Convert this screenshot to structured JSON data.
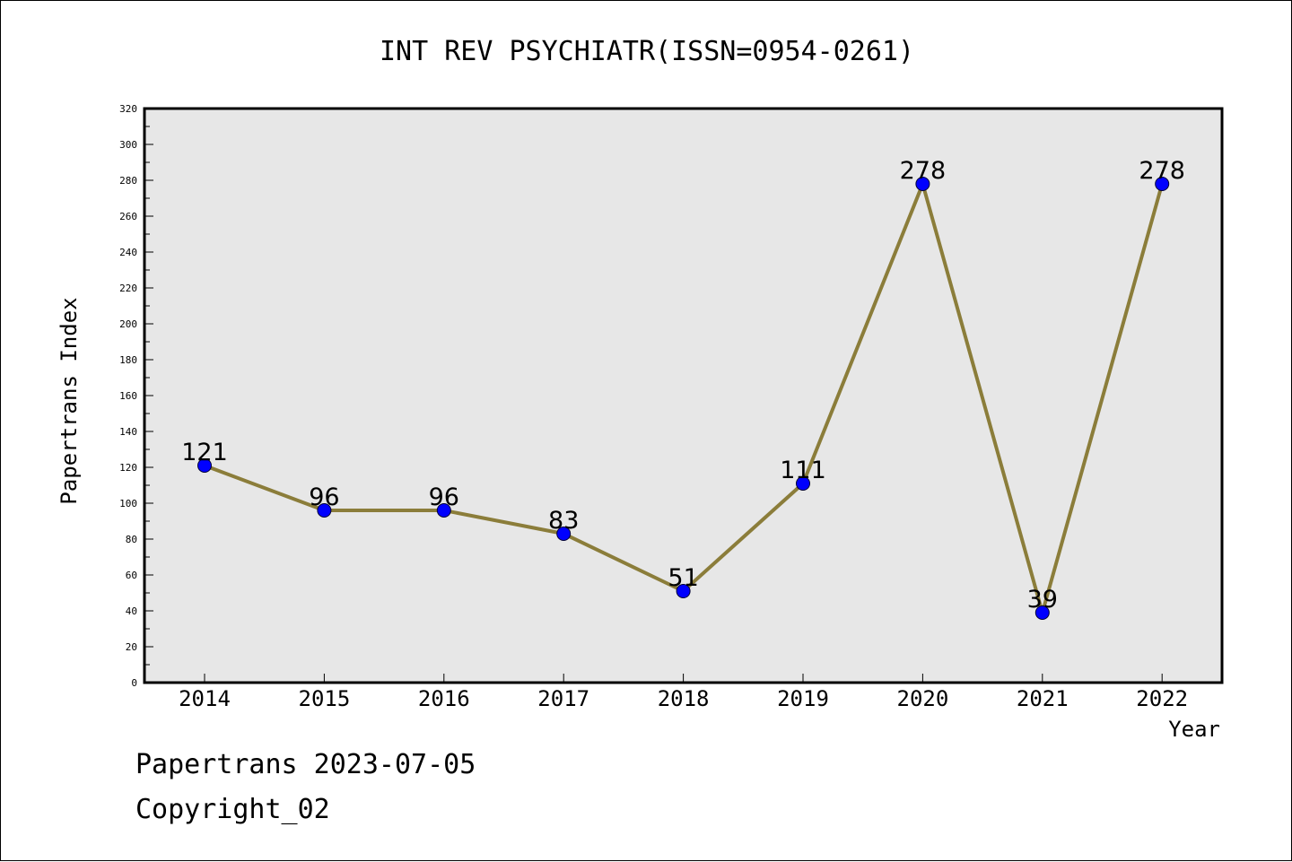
{
  "chart_data": {
    "type": "line",
    "title": "INT REV PSYCHIATR(ISSN=0954-0261)",
    "xlabel": "Year",
    "ylabel": "Papertrans Index",
    "categories": [
      "2014",
      "2015",
      "2016",
      "2017",
      "2018",
      "2019",
      "2020",
      "2021",
      "2022"
    ],
    "series": [
      {
        "values": [
          121,
          96,
          96,
          83,
          51,
          111,
          278,
          39,
          278
        ]
      }
    ],
    "data_labels": [
      "121",
      "96",
      "96",
      "83",
      "51",
      "111",
      "278",
      "39",
      "278"
    ],
    "ylim": [
      0,
      320
    ],
    "y_ticks": [
      "0",
      "20",
      "40",
      "60",
      "80",
      "100",
      "120",
      "140",
      "160",
      "180",
      "200",
      "220",
      "240",
      "260",
      "280",
      "300",
      "320"
    ],
    "grid": false,
    "legend": "none",
    "colors": {
      "plot_background": "#e7e7e7",
      "line": "#8b7d3a",
      "marker_fill": "#0000ff",
      "marker_edge": "#000033"
    }
  },
  "footer": {
    "line1": "Papertrans 2023-07-05",
    "line2": "Copyright_02"
  }
}
